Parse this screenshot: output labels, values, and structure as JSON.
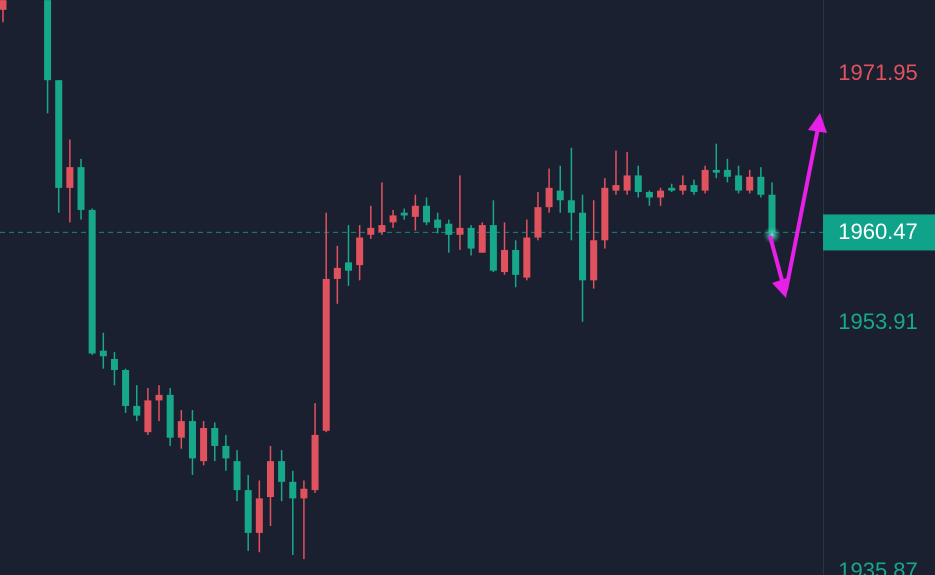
{
  "chart_data": {
    "type": "candlestick",
    "ylim": [
      1935.65,
      1977.31
    ],
    "yticks": [
      1971.95,
      1953.91,
      1935.87
    ],
    "current_price": 1960.47,
    "up_color": "#e0525e",
    "down_color": "#17a88c",
    "current_color": "#0fa38a",
    "open": [
      1976.6,
      null,
      null,
      null,
      1977.3,
      1971.5,
      1963.7,
      1965.2,
      1962.1,
      1951.9,
      1951.3,
      1950.5,
      1947.9,
      1946.0,
      1948.3,
      1948.7,
      1945.6,
      1946.8,
      1943.9,
      1946.3,
      1945.0,
      1943.9,
      1941.8,
      1938.7,
      1941.3,
      1943.9,
      1942.4,
      1941.2,
      1941.8,
      1946.1,
      1957.1,
      1958.3,
      1958.1,
      1960.3,
      1960.5,
      1961.2,
      1961.9,
      1961.6,
      1962.4,
      1961.4,
      1961.1,
      1960.3,
      1960.8,
      1959.0,
      1961.0,
      1957.6,
      1959.2,
      1957.2,
      1960.1,
      1962.3,
      1963.5,
      1962.8,
      1961.9,
      1957.0,
      1959.9,
      1963.5,
      1963.5,
      1964.6,
      1963.4,
      1963.0,
      1963.7,
      1963.5,
      1963.9,
      1963.5,
      1965.0,
      1965.0,
      1964.6,
      1963.5,
      1964.5,
      1963.2
    ],
    "high": [
      1977.3,
      null,
      null,
      null,
      1977.3,
      1971.5,
      1967.2,
      1965.8,
      1962.2,
      1953.2,
      1951.8,
      1950.6,
      1949.4,
      1949.2,
      1949.4,
      1949.2,
      1947.6,
      1947.6,
      1946.8,
      1946.7,
      1945.8,
      1944.7,
      1942.9,
      1942.5,
      1945.0,
      1944.7,
      1943.2,
      1942.5,
      1948.1,
      1961.9,
      1959.5,
      1961.0,
      1961.0,
      1962.4,
      1964.1,
      1962.1,
      1962.2,
      1963.2,
      1963.0,
      1961.9,
      1961.4,
      1964.6,
      1961.0,
      1961.2,
      1962.8,
      1961.2,
      1959.9,
      1961.4,
      1963.4,
      1965.1,
      1965.3,
      1966.6,
      1963.2,
      1962.8,
      1964.4,
      1966.4,
      1966.3,
      1965.3,
      1963.5,
      1963.7,
      1964.0,
      1964.6,
      1964.3,
      1965.3,
      1966.9,
      1965.8,
      1965.3,
      1965.0,
      1965.2,
      1964.1
    ],
    "low": [
      1975.7,
      null,
      null,
      null,
      1969.1,
      1961.9,
      1961.2,
      1961.4,
      1951.6,
      1950.6,
      1949.4,
      1947.4,
      1946.8,
      1945.8,
      1946.8,
      1945.0,
      1944.8,
      1942.9,
      1943.6,
      1943.9,
      1943.2,
      1941.0,
      1937.4,
      1937.3,
      1939.2,
      1941.0,
      1937.1,
      1936.8,
      1941.6,
      1946.0,
      1955.3,
      1956.6,
      1957.0,
      1960.0,
      1960.3,
      1960.8,
      1961.4,
      1960.6,
      1961.0,
      1960.4,
      1959.0,
      1959.2,
      1958.8,
      1959.0,
      1957.6,
      1957.4,
      1956.5,
      1957.0,
      1959.9,
      1961.9,
      1961.9,
      1959.9,
      1954.0,
      1956.4,
      1959.3,
      1963.2,
      1963.2,
      1963.0,
      1962.4,
      1962.4,
      1963.4,
      1963.2,
      1963.2,
      1963.3,
      1964.4,
      1964.1,
      1963.3,
      1963.3,
      1963.0,
      1960.0
    ],
    "close": [
      1977.3,
      null,
      null,
      null,
      1971.5,
      1963.7,
      1965.2,
      1962.1,
      1951.7,
      1951.5,
      1950.5,
      1947.9,
      1947.2,
      1948.3,
      1948.7,
      1945.6,
      1946.8,
      1944.1,
      1946.3,
      1945.0,
      1944.1,
      1941.8,
      1938.7,
      1941.2,
      1943.9,
      1942.4,
      1941.2,
      1941.9,
      1945.8,
      1957.1,
      1957.9,
      1957.7,
      1960.1,
      1960.8,
      1961.0,
      1961.7,
      1961.7,
      1962.4,
      1961.2,
      1960.8,
      1960.3,
      1960.8,
      1959.3,
      1961.0,
      1957.7,
      1959.2,
      1957.4,
      1960.1,
      1962.3,
      1963.7,
      1962.8,
      1961.9,
      1957.0,
      1959.9,
      1963.7,
      1963.9,
      1964.6,
      1963.4,
      1963.0,
      1963.5,
      1963.5,
      1963.9,
      1963.4,
      1965.0,
      1964.8,
      1964.5,
      1963.5,
      1964.5,
      1963.2,
      1960.47
    ]
  }
}
